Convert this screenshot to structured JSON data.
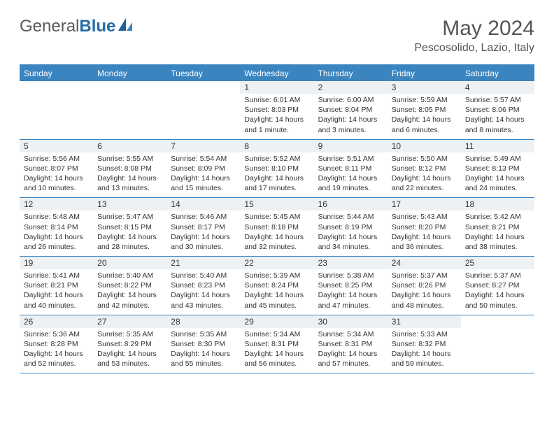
{
  "brand": {
    "part1": "General",
    "part2": "Blue"
  },
  "title": "May 2024",
  "location": "Pescosolido, Lazio, Italy",
  "colors": {
    "accent": "#3a84c0",
    "daynum_bg": "#eef1f4",
    "text": "#333333",
    "header_text": "#555555"
  },
  "day_names": [
    "Sunday",
    "Monday",
    "Tuesday",
    "Wednesday",
    "Thursday",
    "Friday",
    "Saturday"
  ],
  "weeks": [
    [
      {
        "n": "",
        "sunrise": "",
        "sunset": "",
        "daylight": ""
      },
      {
        "n": "",
        "sunrise": "",
        "sunset": "",
        "daylight": ""
      },
      {
        "n": "",
        "sunrise": "",
        "sunset": "",
        "daylight": ""
      },
      {
        "n": "1",
        "sunrise": "Sunrise: 6:01 AM",
        "sunset": "Sunset: 8:03 PM",
        "daylight": "Daylight: 14 hours and 1 minute."
      },
      {
        "n": "2",
        "sunrise": "Sunrise: 6:00 AM",
        "sunset": "Sunset: 8:04 PM",
        "daylight": "Daylight: 14 hours and 3 minutes."
      },
      {
        "n": "3",
        "sunrise": "Sunrise: 5:59 AM",
        "sunset": "Sunset: 8:05 PM",
        "daylight": "Daylight: 14 hours and 6 minutes."
      },
      {
        "n": "4",
        "sunrise": "Sunrise: 5:57 AM",
        "sunset": "Sunset: 8:06 PM",
        "daylight": "Daylight: 14 hours and 8 minutes."
      }
    ],
    [
      {
        "n": "5",
        "sunrise": "Sunrise: 5:56 AM",
        "sunset": "Sunset: 8:07 PM",
        "daylight": "Daylight: 14 hours and 10 minutes."
      },
      {
        "n": "6",
        "sunrise": "Sunrise: 5:55 AM",
        "sunset": "Sunset: 8:08 PM",
        "daylight": "Daylight: 14 hours and 13 minutes."
      },
      {
        "n": "7",
        "sunrise": "Sunrise: 5:54 AM",
        "sunset": "Sunset: 8:09 PM",
        "daylight": "Daylight: 14 hours and 15 minutes."
      },
      {
        "n": "8",
        "sunrise": "Sunrise: 5:52 AM",
        "sunset": "Sunset: 8:10 PM",
        "daylight": "Daylight: 14 hours and 17 minutes."
      },
      {
        "n": "9",
        "sunrise": "Sunrise: 5:51 AM",
        "sunset": "Sunset: 8:11 PM",
        "daylight": "Daylight: 14 hours and 19 minutes."
      },
      {
        "n": "10",
        "sunrise": "Sunrise: 5:50 AM",
        "sunset": "Sunset: 8:12 PM",
        "daylight": "Daylight: 14 hours and 22 minutes."
      },
      {
        "n": "11",
        "sunrise": "Sunrise: 5:49 AM",
        "sunset": "Sunset: 8:13 PM",
        "daylight": "Daylight: 14 hours and 24 minutes."
      }
    ],
    [
      {
        "n": "12",
        "sunrise": "Sunrise: 5:48 AM",
        "sunset": "Sunset: 8:14 PM",
        "daylight": "Daylight: 14 hours and 26 minutes."
      },
      {
        "n": "13",
        "sunrise": "Sunrise: 5:47 AM",
        "sunset": "Sunset: 8:15 PM",
        "daylight": "Daylight: 14 hours and 28 minutes."
      },
      {
        "n": "14",
        "sunrise": "Sunrise: 5:46 AM",
        "sunset": "Sunset: 8:17 PM",
        "daylight": "Daylight: 14 hours and 30 minutes."
      },
      {
        "n": "15",
        "sunrise": "Sunrise: 5:45 AM",
        "sunset": "Sunset: 8:18 PM",
        "daylight": "Daylight: 14 hours and 32 minutes."
      },
      {
        "n": "16",
        "sunrise": "Sunrise: 5:44 AM",
        "sunset": "Sunset: 8:19 PM",
        "daylight": "Daylight: 14 hours and 34 minutes."
      },
      {
        "n": "17",
        "sunrise": "Sunrise: 5:43 AM",
        "sunset": "Sunset: 8:20 PM",
        "daylight": "Daylight: 14 hours and 36 minutes."
      },
      {
        "n": "18",
        "sunrise": "Sunrise: 5:42 AM",
        "sunset": "Sunset: 8:21 PM",
        "daylight": "Daylight: 14 hours and 38 minutes."
      }
    ],
    [
      {
        "n": "19",
        "sunrise": "Sunrise: 5:41 AM",
        "sunset": "Sunset: 8:21 PM",
        "daylight": "Daylight: 14 hours and 40 minutes."
      },
      {
        "n": "20",
        "sunrise": "Sunrise: 5:40 AM",
        "sunset": "Sunset: 8:22 PM",
        "daylight": "Daylight: 14 hours and 42 minutes."
      },
      {
        "n": "21",
        "sunrise": "Sunrise: 5:40 AM",
        "sunset": "Sunset: 8:23 PM",
        "daylight": "Daylight: 14 hours and 43 minutes."
      },
      {
        "n": "22",
        "sunrise": "Sunrise: 5:39 AM",
        "sunset": "Sunset: 8:24 PM",
        "daylight": "Daylight: 14 hours and 45 minutes."
      },
      {
        "n": "23",
        "sunrise": "Sunrise: 5:38 AM",
        "sunset": "Sunset: 8:25 PM",
        "daylight": "Daylight: 14 hours and 47 minutes."
      },
      {
        "n": "24",
        "sunrise": "Sunrise: 5:37 AM",
        "sunset": "Sunset: 8:26 PM",
        "daylight": "Daylight: 14 hours and 48 minutes."
      },
      {
        "n": "25",
        "sunrise": "Sunrise: 5:37 AM",
        "sunset": "Sunset: 8:27 PM",
        "daylight": "Daylight: 14 hours and 50 minutes."
      }
    ],
    [
      {
        "n": "26",
        "sunrise": "Sunrise: 5:36 AM",
        "sunset": "Sunset: 8:28 PM",
        "daylight": "Daylight: 14 hours and 52 minutes."
      },
      {
        "n": "27",
        "sunrise": "Sunrise: 5:35 AM",
        "sunset": "Sunset: 8:29 PM",
        "daylight": "Daylight: 14 hours and 53 minutes."
      },
      {
        "n": "28",
        "sunrise": "Sunrise: 5:35 AM",
        "sunset": "Sunset: 8:30 PM",
        "daylight": "Daylight: 14 hours and 55 minutes."
      },
      {
        "n": "29",
        "sunrise": "Sunrise: 5:34 AM",
        "sunset": "Sunset: 8:31 PM",
        "daylight": "Daylight: 14 hours and 56 minutes."
      },
      {
        "n": "30",
        "sunrise": "Sunrise: 5:34 AM",
        "sunset": "Sunset: 8:31 PM",
        "daylight": "Daylight: 14 hours and 57 minutes."
      },
      {
        "n": "31",
        "sunrise": "Sunrise: 5:33 AM",
        "sunset": "Sunset: 8:32 PM",
        "daylight": "Daylight: 14 hours and 59 minutes."
      },
      {
        "n": "",
        "sunrise": "",
        "sunset": "",
        "daylight": ""
      }
    ]
  ]
}
